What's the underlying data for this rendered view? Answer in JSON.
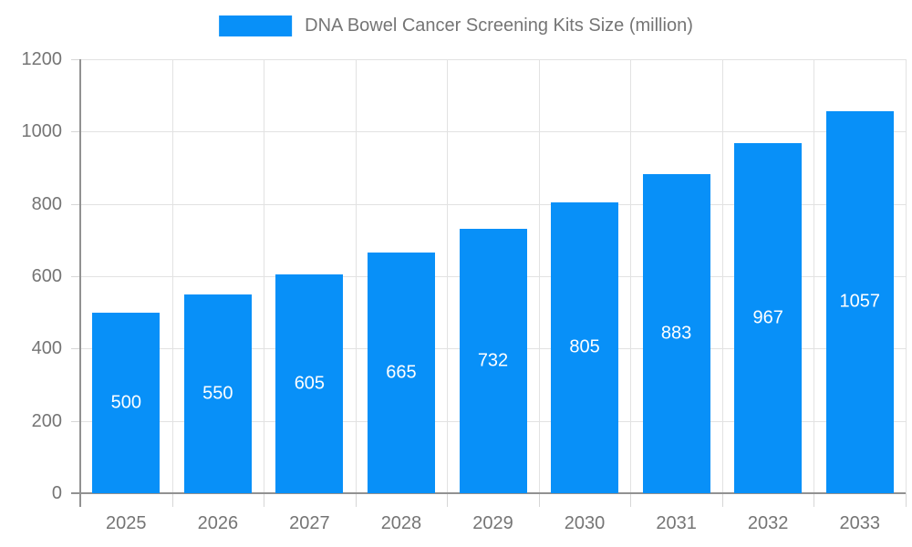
{
  "legend": {
    "label": "DNA Bowel Cancer Screening Kits Size (million)"
  },
  "colors": {
    "bar": "#0890F8",
    "bar_label": "#FFFFFF",
    "axis": "#919191",
    "grid": "#E2E2E2",
    "tick": "#D6D6D6",
    "text": "#757575",
    "background": "#FFFFFF"
  },
  "chart_data": {
    "type": "bar",
    "title": "DNA Bowel Cancer Screening Kits Size (million)",
    "series_name": "DNA Bowel Cancer Screening Kits Size (million)",
    "categories": [
      "2025",
      "2026",
      "2027",
      "2028",
      "2029",
      "2030",
      "2031",
      "2032",
      "2033"
    ],
    "values": [
      500,
      550,
      605,
      665,
      732,
      805,
      883,
      967,
      1057
    ],
    "xlabel": "",
    "ylabel": "",
    "ylim": [
      0,
      1200
    ],
    "yticks": [
      0,
      200,
      400,
      600,
      800,
      1000,
      1200
    ],
    "grid": true,
    "legend_position": "top",
    "value_labels": "inside-center"
  }
}
